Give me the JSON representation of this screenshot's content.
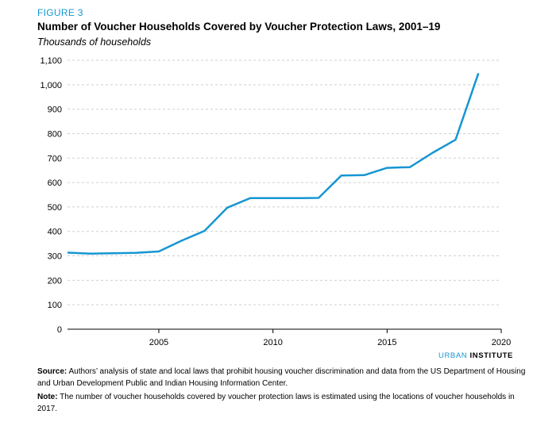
{
  "figure": {
    "label": "FIGURE 3",
    "title": "Number of Voucher Households Covered by Voucher Protection Laws, 2001–19",
    "subtitle": "Thousands of households"
  },
  "brand": {
    "light": "URBAN",
    "bold": "INSTITUTE"
  },
  "notes": {
    "source_label": "Source:",
    "source_text": "Authors’ analysis of state and local laws that prohibit housing voucher discrimination and data from the US Department of Housing and Urban Development Public and Indian Housing Information Center.",
    "note_label": "Note:",
    "note_text": "The number of voucher households covered by voucher protection laws is estimated using the locations of voucher households in 2017."
  },
  "chart_data": {
    "type": "line",
    "title": "Number of Voucher Households Covered by Voucher Protection Laws, 2001–19",
    "ylabel": "Thousands of households",
    "xlabel": "",
    "xlim": [
      2001,
      2020
    ],
    "ylim": [
      0,
      1100
    ],
    "x_ticks": [
      2005,
      2010,
      2015,
      2020
    ],
    "y_ticks": [
      0,
      100,
      200,
      300,
      400,
      500,
      600,
      700,
      800,
      900,
      1000,
      1100
    ],
    "y_tick_labels": [
      "0",
      "100",
      "200",
      "300",
      "400",
      "500",
      "600",
      "700",
      "800",
      "900",
      "1,000",
      "1,100"
    ],
    "grid": "horizontal-dashed",
    "line_color": "#1696d2",
    "series": [
      {
        "x": [
          2001,
          2002,
          2003,
          2004,
          2005,
          2006,
          2007,
          2008,
          2009,
          2010,
          2011,
          2012,
          2013,
          2014,
          2015,
          2016,
          2017,
          2018,
          2019
        ],
        "values": [
          313,
          309,
          311,
          312,
          318,
          362,
          402,
          497,
          536,
          536,
          536,
          537,
          629,
          630,
          660,
          663,
          722,
          775,
          1047
        ]
      }
    ]
  }
}
